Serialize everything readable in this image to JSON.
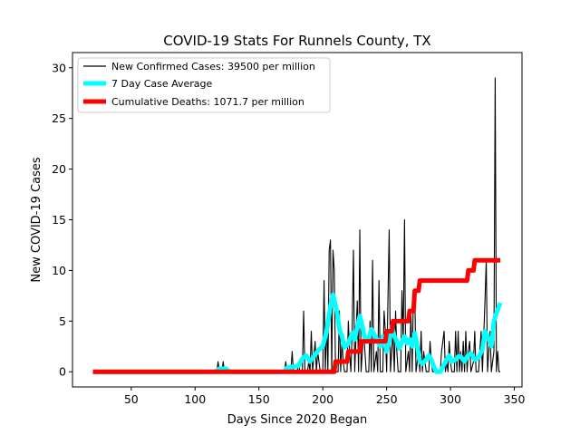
{
  "chart_data": {
    "type": "line",
    "title": "COVID-19 Stats For Runnels County, TX",
    "xlabel": "Days Since 2020 Began",
    "ylabel": "New COVID-19 Cases",
    "xlim": [
      4,
      356
    ],
    "ylim": [
      -1.5,
      31.5
    ],
    "xticks": [
      50,
      100,
      150,
      200,
      250,
      300,
      350
    ],
    "yticks": [
      0,
      5,
      10,
      15,
      20,
      25,
      30
    ],
    "grid": false,
    "legend_position": "top-left",
    "series": [
      {
        "name": "New Confirmed Cases: 39500 per million",
        "color": "#000000",
        "style": "thin",
        "points": [
          [
            20,
            0
          ],
          [
            117,
            0
          ],
          [
            118,
            1
          ],
          [
            119,
            0
          ],
          [
            121,
            0
          ],
          [
            122,
            1
          ],
          [
            123,
            0
          ],
          [
            170,
            0
          ],
          [
            171,
            1
          ],
          [
            172,
            0
          ],
          [
            175,
            0
          ],
          [
            176,
            2
          ],
          [
            177,
            0
          ],
          [
            180,
            0
          ],
          [
            181,
            1
          ],
          [
            182,
            0
          ],
          [
            184,
            0
          ],
          [
            185,
            6
          ],
          [
            186,
            0
          ],
          [
            188,
            0
          ],
          [
            189,
            1
          ],
          [
            190,
            0
          ],
          [
            191,
            4
          ],
          [
            192,
            0
          ],
          [
            194,
            3
          ],
          [
            195,
            0
          ],
          [
            196,
            2
          ],
          [
            197,
            1
          ],
          [
            198,
            0
          ],
          [
            200,
            0
          ],
          [
            201,
            9
          ],
          [
            202,
            0
          ],
          [
            203,
            5
          ],
          [
            204,
            0
          ],
          [
            205,
            12
          ],
          [
            206,
            13
          ],
          [
            207,
            0
          ],
          [
            208,
            12
          ],
          [
            209,
            10
          ],
          [
            210,
            0
          ],
          [
            212,
            0
          ],
          [
            213,
            6
          ],
          [
            214,
            0
          ],
          [
            215,
            3
          ],
          [
            216,
            1
          ],
          [
            217,
            0
          ],
          [
            219,
            0
          ],
          [
            220,
            5
          ],
          [
            221,
            2
          ],
          [
            222,
            0
          ],
          [
            223,
            4
          ],
          [
            224,
            12
          ],
          [
            225,
            0
          ],
          [
            227,
            7
          ],
          [
            228,
            0
          ],
          [
            229,
            14
          ],
          [
            230,
            0
          ],
          [
            232,
            4
          ],
          [
            233,
            2
          ],
          [
            234,
            0
          ],
          [
            236,
            0
          ],
          [
            237,
            5
          ],
          [
            238,
            0
          ],
          [
            239,
            11
          ],
          [
            240,
            0
          ],
          [
            242,
            2
          ],
          [
            243,
            0
          ],
          [
            244,
            9
          ],
          [
            245,
            0
          ],
          [
            247,
            0
          ],
          [
            248,
            6
          ],
          [
            249,
            4
          ],
          [
            250,
            0
          ],
          [
            252,
            14
          ],
          [
            253,
            0
          ],
          [
            255,
            4
          ],
          [
            256,
            0
          ],
          [
            257,
            6
          ],
          [
            258,
            2
          ],
          [
            259,
            0
          ],
          [
            261,
            0
          ],
          [
            262,
            8
          ],
          [
            263,
            3
          ],
          [
            264,
            15
          ],
          [
            265,
            0
          ],
          [
            267,
            2
          ],
          [
            268,
            0
          ],
          [
            269,
            6
          ],
          [
            270,
            0
          ],
          [
            271,
            8
          ],
          [
            272,
            8
          ],
          [
            273,
            0
          ],
          [
            275,
            2
          ],
          [
            276,
            0
          ],
          [
            277,
            4
          ],
          [
            278,
            0
          ],
          [
            279,
            2
          ],
          [
            280,
            1
          ],
          [
            281,
            0
          ],
          [
            283,
            0
          ],
          [
            284,
            3
          ],
          [
            285,
            1
          ],
          [
            286,
            0
          ],
          [
            288,
            0
          ],
          [
            292,
            0
          ],
          [
            293,
            2
          ],
          [
            294,
            3
          ],
          [
            295,
            4
          ],
          [
            296,
            0
          ],
          [
            297,
            1
          ],
          [
            298,
            0
          ],
          [
            299,
            3
          ],
          [
            300,
            1
          ],
          [
            301,
            0
          ],
          [
            303,
            0
          ],
          [
            304,
            4
          ],
          [
            305,
            0
          ],
          [
            306,
            4
          ],
          [
            307,
            0
          ],
          [
            308,
            2
          ],
          [
            309,
            0
          ],
          [
            310,
            3
          ],
          [
            311,
            0
          ],
          [
            312,
            4
          ],
          [
            313,
            0
          ],
          [
            314,
            2
          ],
          [
            315,
            3
          ],
          [
            316,
            0
          ],
          [
            318,
            1
          ],
          [
            319,
            4
          ],
          [
            320,
            0
          ],
          [
            322,
            0
          ],
          [
            323,
            2
          ],
          [
            324,
            4
          ],
          [
            325,
            0
          ],
          [
            327,
            7
          ],
          [
            328,
            11
          ],
          [
            329,
            0
          ],
          [
            331,
            4
          ],
          [
            332,
            0
          ],
          [
            334,
            2
          ],
          [
            335,
            29
          ],
          [
            336,
            0
          ],
          [
            337,
            2
          ],
          [
            338,
            0
          ],
          [
            339,
            0
          ]
        ]
      },
      {
        "name": "7 Day Case Average",
        "color": "#00ffff",
        "style": "thick",
        "points": [
          [
            20,
            0
          ],
          [
            116,
            0
          ],
          [
            119,
            0.3
          ],
          [
            124,
            0.3
          ],
          [
            127,
            0
          ],
          [
            170,
            0
          ],
          [
            172,
            0.4
          ],
          [
            177,
            0.5
          ],
          [
            181,
            0.6
          ],
          [
            184,
            1.3
          ],
          [
            187,
            1.6
          ],
          [
            190,
            1
          ],
          [
            193,
            1.5
          ],
          [
            197,
            2.2
          ],
          [
            200,
            2.5
          ],
          [
            203,
            4
          ],
          [
            206,
            6.5
          ],
          [
            208,
            7.6
          ],
          [
            211,
            6
          ],
          [
            213,
            4.2
          ],
          [
            215,
            3.5
          ],
          [
            217,
            2.4
          ],
          [
            220,
            2.8
          ],
          [
            223,
            3.8
          ],
          [
            225,
            3.2
          ],
          [
            227,
            4.5
          ],
          [
            229,
            5.5
          ],
          [
            231,
            4.5
          ],
          [
            233,
            3.2
          ],
          [
            236,
            3.3
          ],
          [
            238,
            4.2
          ],
          [
            241,
            3.5
          ],
          [
            243,
            3
          ],
          [
            245,
            2.5
          ],
          [
            247,
            3.5
          ],
          [
            250,
            2
          ],
          [
            252,
            3
          ],
          [
            254,
            4.5
          ],
          [
            256,
            3.5
          ],
          [
            258,
            3
          ],
          [
            260,
            2.3
          ],
          [
            262,
            3
          ],
          [
            264,
            3.5
          ],
          [
            266,
            2.8
          ],
          [
            268,
            3.2
          ],
          [
            270,
            2.5
          ],
          [
            272,
            3.8
          ],
          [
            274,
            2.5
          ],
          [
            276,
            1
          ],
          [
            278,
            0.8
          ],
          [
            281,
            1.2
          ],
          [
            283,
            1.6
          ],
          [
            285,
            1.2
          ],
          [
            287,
            0.5
          ],
          [
            289,
            0
          ],
          [
            292,
            0
          ],
          [
            294,
            0.5
          ],
          [
            297,
            1.2
          ],
          [
            299,
            1.6
          ],
          [
            301,
            1
          ],
          [
            304,
            1.2
          ],
          [
            306,
            1.5
          ],
          [
            308,
            1.5
          ],
          [
            311,
            1
          ],
          [
            313,
            1.5
          ],
          [
            316,
            1.8
          ],
          [
            319,
            1.2
          ],
          [
            322,
            1.4
          ],
          [
            325,
            2.2
          ],
          [
            327,
            4
          ],
          [
            329,
            3.5
          ],
          [
            332,
            2.5
          ],
          [
            334,
            5
          ],
          [
            336,
            5.8
          ],
          [
            339,
            6.8
          ]
        ]
      },
      {
        "name": "Cumulative Deaths: 1071.7 per million",
        "color": "#ff0000",
        "style": "thick",
        "points": [
          [
            20,
            0
          ],
          [
            209,
            0
          ],
          [
            210,
            1
          ],
          [
            219,
            1
          ],
          [
            220,
            2
          ],
          [
            229,
            2
          ],
          [
            230,
            3
          ],
          [
            249,
            3
          ],
          [
            250,
            4
          ],
          [
            254,
            4
          ],
          [
            255,
            5
          ],
          [
            267,
            5
          ],
          [
            268,
            6
          ],
          [
            271,
            6
          ],
          [
            272,
            8
          ],
          [
            275,
            8
          ],
          [
            276,
            9
          ],
          [
            313,
            9
          ],
          [
            314,
            10
          ],
          [
            318,
            10
          ],
          [
            319,
            11
          ],
          [
            339,
            11
          ]
        ]
      }
    ]
  }
}
